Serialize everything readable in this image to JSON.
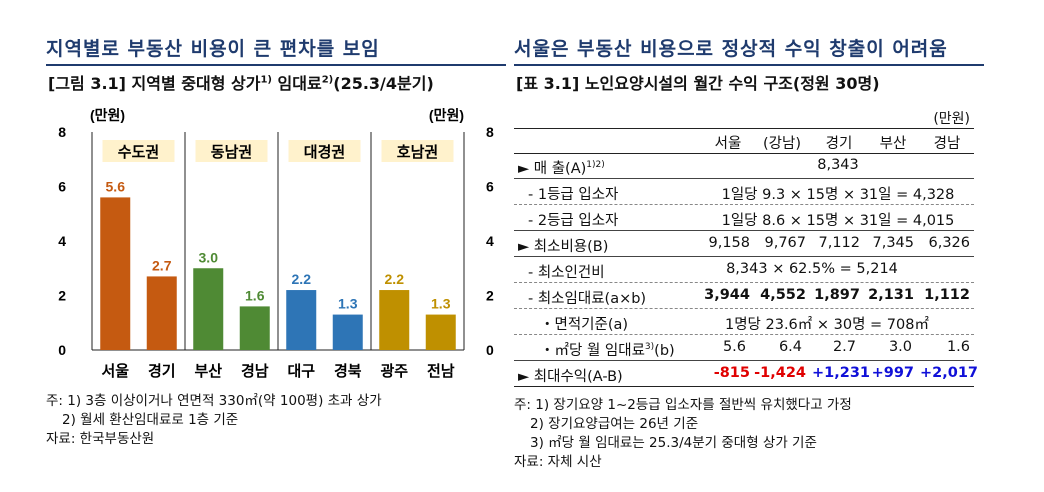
{
  "left": {
    "headline": "지역별로 부동산 비용이 큰 편차를 보임",
    "subtitle": "[그림 3.1] 지역별 중대형 상가",
    "subtitle_sup1": "1)",
    "subtitle_mid": " 임대료",
    "subtitle_sup2": "2)",
    "subtitle_tail": "(25.3/4분기)",
    "notes": [
      "주: 1) 3층 이상이거나 연면적 330㎡(약 100평) 초과 상가",
      "     2) 월세 환산임대료로 1층 기준",
      "자료: 한국부동산원"
    ]
  },
  "chart_data": {
    "type": "bar",
    "ylabel": "(만원)",
    "ylabel_right": "(만원)",
    "ylim": [
      0,
      8
    ],
    "yticks": [
      "0",
      "2",
      "4",
      "6",
      "8"
    ],
    "groups": [
      "수도권",
      "동남권",
      "대경권",
      "호남권"
    ],
    "categories": [
      "서울",
      "경기",
      "부산",
      "경남",
      "대구",
      "경북",
      "광주",
      "전남"
    ],
    "values": [
      5.6,
      2.7,
      3.0,
      1.6,
      2.2,
      1.3,
      2.2,
      1.3
    ],
    "value_labels": [
      "5.6",
      "2.7",
      "3.0",
      "1.6",
      "2.2",
      "1.3",
      "2.2",
      "1.3"
    ],
    "colors": [
      "#c55a11",
      "#c55a11",
      "#4f8a34",
      "#4f8a34",
      "#2e75b6",
      "#2e75b6",
      "#bf9000",
      "#bf9000"
    ],
    "group_label_bg": "#fff2cc"
  },
  "right": {
    "headline": "서울은 부동산 비용으로 정상적 수익 창출이 어려움",
    "subtitle": "[표 3.1] 노인요양시설의 월간 수익 구조(정원 30명)",
    "unit": "(만원)",
    "columns": [
      "서울",
      "(강남)",
      "경기",
      "부산",
      "경남"
    ],
    "rows": {
      "sales_label": "► 매 출(A)",
      "sales_sup": "1)2)",
      "sales_value": "8,343",
      "grade1_label": "- 1등급 입소자",
      "grade1_value": "1일당 9.3 × 15명 × 31일 = 4,328",
      "grade2_label": "- 2등급 입소자",
      "grade2_value": "1일당 8.6 × 15명 × 31일 = 4,015",
      "mincost_label": "► 최소비용(B)",
      "mincost_values": [
        "9,158",
        "9,767",
        "7,112",
        "7,345",
        "6,326"
      ],
      "labor_label": "- 최소인건비",
      "labor_value": "8,343 × 62.5% = 5,214",
      "rent_label": "- 최소임대료(a×b)",
      "rent_values": [
        "3,944",
        "4,552",
        "1,897",
        "2,131",
        "1,112"
      ],
      "area_label": "・면적기준(a)",
      "area_value": "1명당 23.6㎡ × 30명 = 708㎡",
      "perm2_label": "・㎡당 월 임대료",
      "perm2_sup": "3)",
      "perm2_tail": "(b)",
      "perm2_values": [
        "5.6",
        "6.4",
        "2.7",
        "3.0",
        "1.6"
      ],
      "profit_label": "► 최대수익(A-B)",
      "profit_values": [
        "-815",
        "-1,424",
        "+1,231",
        "+997",
        "+2,017"
      ]
    },
    "colors": {
      "negative": "#e00000",
      "positive": "#1010d8"
    },
    "notes": [
      "주: 1) 장기요양 1~2등급 입소자를 절반씩 유치했다고 가정",
      "     2) 장기요양급여는 26년 기준",
      "     3) ㎡당 월 임대료는 25.3/4분기 중대형 상가 기준",
      "자료: 자체 시산"
    ]
  }
}
